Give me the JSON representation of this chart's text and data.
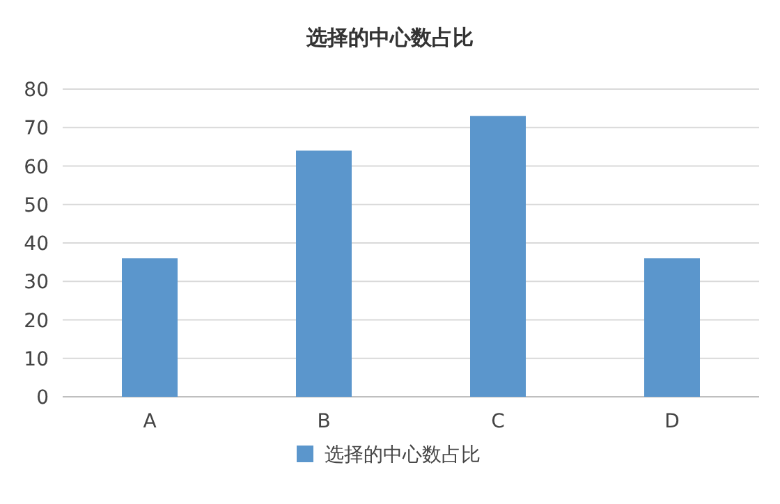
{
  "chart_data": {
    "type": "bar",
    "title": "选择的中心数占比",
    "categories": [
      "A",
      "B",
      "C",
      "D"
    ],
    "series": [
      {
        "name": "选择的中心数占比",
        "color": "#5b96cc",
        "values": [
          36,
          64,
          73,
          36
        ]
      }
    ],
    "ylim": [
      0,
      80
    ],
    "yticks": [
      0,
      10,
      20,
      30,
      40,
      50,
      60,
      70,
      80
    ],
    "grid": "y",
    "legend": "bottom"
  }
}
